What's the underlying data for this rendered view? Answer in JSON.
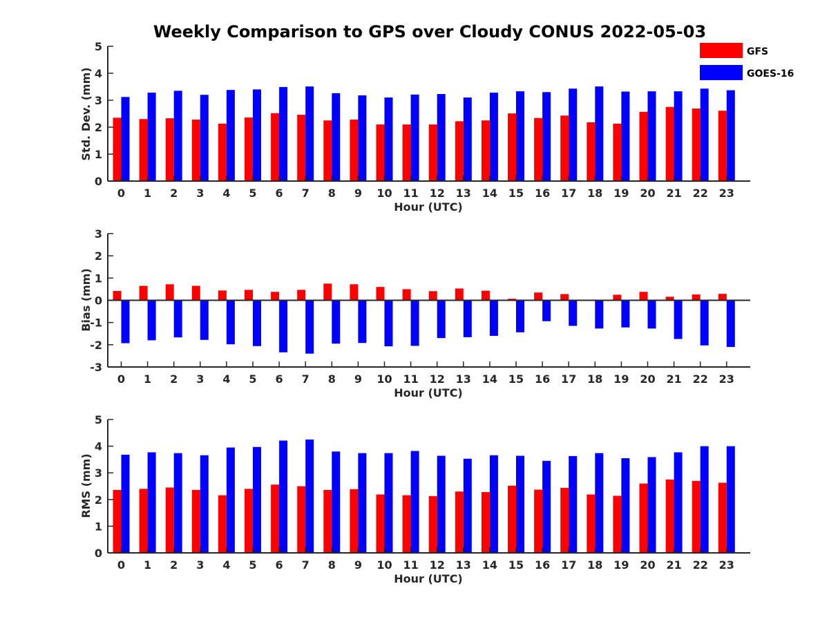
{
  "title": "Weekly Comparison to GPS over Cloudy CONUS 2022-05-03",
  "legend": [
    {
      "label": "GFS",
      "color": "#ff0000"
    },
    {
      "label": "GOES-16",
      "color": "#0000ff"
    }
  ],
  "chart_data": [
    {
      "type": "bar",
      "xlabel": "Hour (UTC)",
      "ylabel": "Std. Dev. (mm)",
      "ylim": [
        0,
        5
      ],
      "yticks": [
        0,
        1,
        2,
        3,
        4,
        5
      ],
      "categories": [
        "0",
        "1",
        "2",
        "3",
        "4",
        "5",
        "6",
        "7",
        "8",
        "9",
        "10",
        "11",
        "12",
        "13",
        "14",
        "15",
        "16",
        "17",
        "18",
        "19",
        "20",
        "21",
        "22",
        "23"
      ],
      "series": [
        {
          "name": "GFS",
          "color": "#ff0000",
          "values": [
            2.35,
            2.3,
            2.33,
            2.28,
            2.13,
            2.36,
            2.52,
            2.46,
            2.25,
            2.28,
            2.1,
            2.1,
            2.1,
            2.22,
            2.25,
            2.51,
            2.34,
            2.43,
            2.18,
            2.13,
            2.57,
            2.75,
            2.69,
            2.61
          ]
        },
        {
          "name": "GOES-16",
          "color": "#0000ff",
          "values": [
            3.12,
            3.28,
            3.35,
            3.2,
            3.38,
            3.4,
            3.49,
            3.51,
            3.26,
            3.18,
            3.1,
            3.21,
            3.23,
            3.1,
            3.28,
            3.33,
            3.3,
            3.43,
            3.51,
            3.32,
            3.33,
            3.33,
            3.43,
            3.37
          ]
        }
      ]
    },
    {
      "type": "bar",
      "xlabel": "Hour (UTC)",
      "ylabel": "Bias (mm)",
      "ylim": [
        -3,
        3
      ],
      "yticks": [
        -3,
        -2,
        -1,
        0,
        1,
        2,
        3
      ],
      "categories": [
        "0",
        "1",
        "2",
        "3",
        "4",
        "5",
        "6",
        "7",
        "8",
        "9",
        "10",
        "11",
        "12",
        "13",
        "14",
        "15",
        "16",
        "17",
        "18",
        "19",
        "20",
        "21",
        "22",
        "23"
      ],
      "series": [
        {
          "name": "GFS",
          "color": "#ff0000",
          "values": [
            0.42,
            0.65,
            0.72,
            0.65,
            0.44,
            0.47,
            0.38,
            0.47,
            0.75,
            0.72,
            0.6,
            0.5,
            0.41,
            0.53,
            0.43,
            0.07,
            0.35,
            0.28,
            0.0,
            0.25,
            0.38,
            0.16,
            0.26,
            0.29
          ]
        },
        {
          "name": "GOES-16",
          "color": "#0000ff",
          "values": [
            -1.93,
            -1.8,
            -1.67,
            -1.78,
            -1.98,
            -2.06,
            -2.34,
            -2.4,
            -1.95,
            -1.92,
            -2.07,
            -2.05,
            -1.7,
            -1.66,
            -1.6,
            -1.44,
            -0.94,
            -1.15,
            -1.27,
            -1.22,
            -1.27,
            -1.74,
            -2.03,
            -2.1
          ]
        }
      ]
    },
    {
      "type": "bar",
      "xlabel": "Hour (UTC)",
      "ylabel": "RMS (mm)",
      "ylim": [
        0,
        5
      ],
      "yticks": [
        0,
        1,
        2,
        3,
        4,
        5
      ],
      "categories": [
        "0",
        "1",
        "2",
        "3",
        "4",
        "5",
        "6",
        "7",
        "8",
        "9",
        "10",
        "11",
        "12",
        "13",
        "14",
        "15",
        "16",
        "17",
        "18",
        "19",
        "20",
        "21",
        "22",
        "23"
      ],
      "series": [
        {
          "name": "GFS",
          "color": "#ff0000",
          "values": [
            2.36,
            2.4,
            2.45,
            2.36,
            2.16,
            2.4,
            2.56,
            2.5,
            2.36,
            2.39,
            2.19,
            2.16,
            2.13,
            2.3,
            2.28,
            2.52,
            2.37,
            2.44,
            2.19,
            2.14,
            2.6,
            2.75,
            2.7,
            2.63
          ]
        },
        {
          "name": "GOES-16",
          "color": "#0000ff",
          "values": [
            3.68,
            3.77,
            3.74,
            3.66,
            3.95,
            3.97,
            4.21,
            4.25,
            3.8,
            3.74,
            3.74,
            3.82,
            3.64,
            3.53,
            3.66,
            3.64,
            3.45,
            3.63,
            3.74,
            3.55,
            3.59,
            3.77,
            4.0,
            4.0
          ]
        }
      ]
    }
  ]
}
